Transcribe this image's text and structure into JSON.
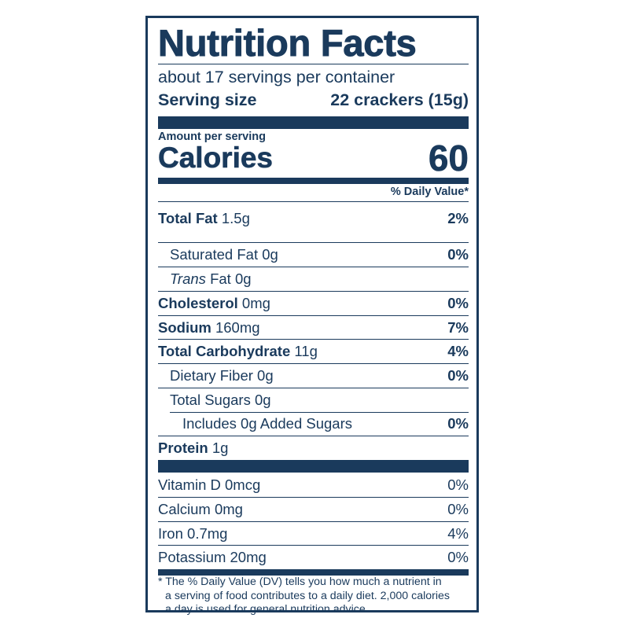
{
  "title": "Nutrition Facts",
  "servings_per_container": "about 17 servings per container",
  "serving_size": {
    "label": "Serving size",
    "value": "22 crackers (15g)"
  },
  "amount_per_serving": "Amount per serving",
  "calories": {
    "label": "Calories",
    "value": "60"
  },
  "daily_value_header": "% Daily Value*",
  "nutrients": [
    {
      "name": "Total Fat",
      "amount": "1.5g",
      "dv": "2%"
    },
    {
      "name": "Saturated Fat",
      "amount": "0g",
      "dv": "0%"
    },
    {
      "name_italic": "Trans",
      "name": "Fat",
      "amount": "0g",
      "dv": ""
    },
    {
      "name": "Cholesterol",
      "amount": "0mg",
      "dv": "0%"
    },
    {
      "name": "Sodium",
      "amount": "160mg",
      "dv": "7%"
    },
    {
      "name": "Total Carbohydrate",
      "amount": "11g",
      "dv": "4%"
    },
    {
      "name": "Dietary Fiber",
      "amount": "0g",
      "dv": "0%"
    },
    {
      "name": "Total Sugars",
      "amount": "0g",
      "dv": ""
    },
    {
      "name": "Includes 0g Added Sugars",
      "amount": "",
      "dv": "0%"
    },
    {
      "name": "Protein",
      "amount": "1g",
      "dv": ""
    }
  ],
  "vitamins": [
    {
      "name": "Vitamin D",
      "amount": "0mcg",
      "dv": "0%"
    },
    {
      "name": "Calcium",
      "amount": "0mg",
      "dv": "0%"
    },
    {
      "name": "Iron",
      "amount": "0.7mg",
      "dv": "4%"
    },
    {
      "name": "Potassium",
      "amount": "20mg",
      "dv": "0%"
    }
  ],
  "footnote": [
    "* The % Daily Value (DV) tells you how much a nutrient in",
    "a serving of food contributes to a daily diet. 2,000 calories",
    "a day is used for general nutrition advice."
  ],
  "colors": {
    "ink": "#1a3a5c",
    "background": "#ffffff"
  }
}
